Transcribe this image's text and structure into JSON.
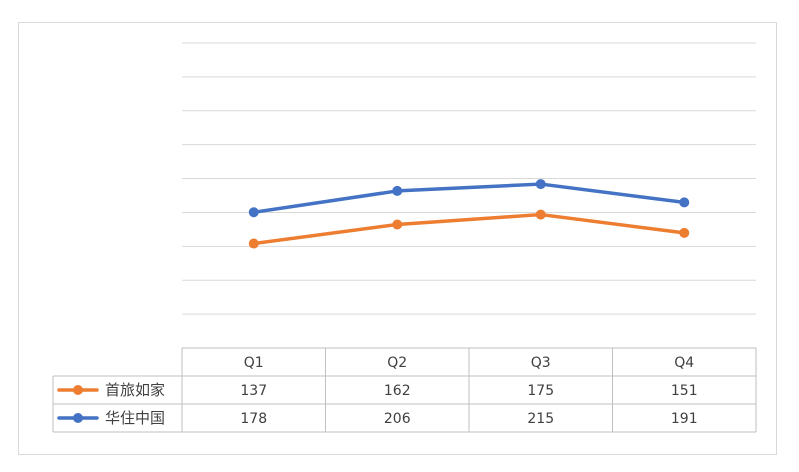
{
  "chart_data": {
    "type": "line",
    "title": "",
    "xlabel": "",
    "ylabel": "",
    "categories": [
      "Q1",
      "Q2",
      "Q3",
      "Q4"
    ],
    "ylim": [
      0,
      400
    ],
    "grid": true,
    "legend_position": "data-table-left",
    "series": [
      {
        "name": "首旅如家",
        "values": [
          137,
          162,
          175,
          151
        ],
        "color": "#ED7D31"
      },
      {
        "name": "华住中国",
        "values": [
          178,
          206,
          215,
          191
        ],
        "color": "#4472C4"
      }
    ],
    "data_table": true
  }
}
